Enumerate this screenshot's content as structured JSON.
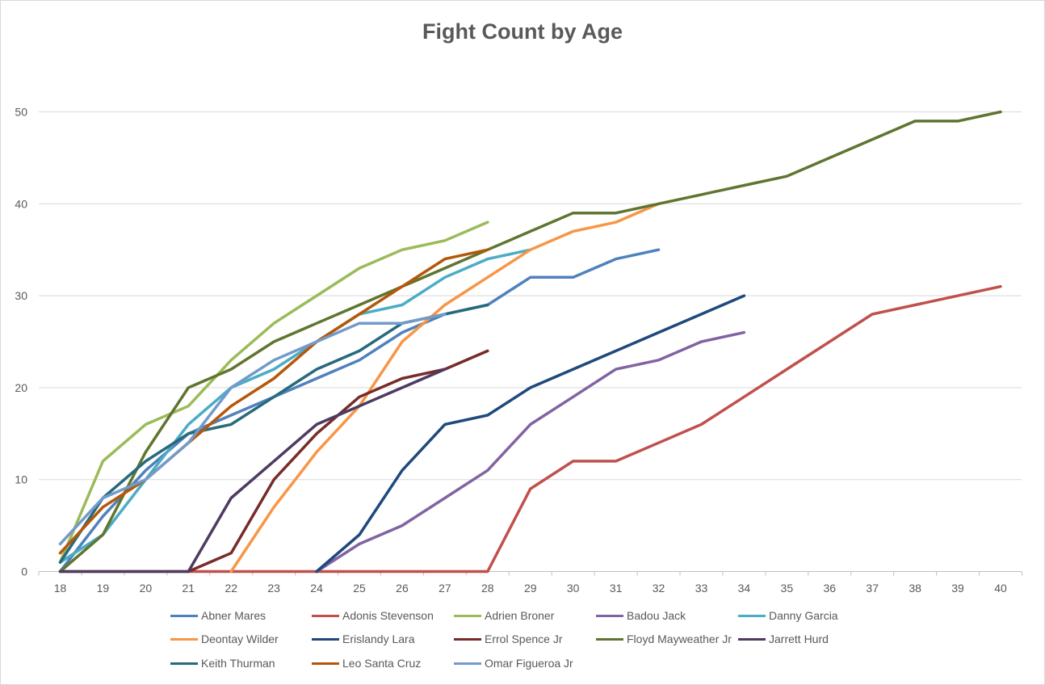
{
  "chart_data": {
    "type": "line",
    "title": "Fight Count by Age",
    "xlabel": "",
    "ylabel": "",
    "x": [
      18,
      19,
      20,
      21,
      22,
      23,
      24,
      25,
      26,
      27,
      28,
      29,
      30,
      31,
      32,
      33,
      34,
      35,
      36,
      37,
      38,
      39,
      40
    ],
    "y_ticks": [
      0,
      10,
      20,
      30,
      40,
      50
    ],
    "ylim": [
      0,
      55
    ],
    "grid": "horizontal",
    "legend_position": "bottom",
    "series": [
      {
        "name": "Abner Mares",
        "color": "#4f81bd",
        "values": [
          0,
          6,
          11,
          15,
          17,
          19,
          21,
          23,
          26,
          28,
          29,
          32,
          32,
          34,
          35,
          null,
          null,
          null,
          null,
          null,
          null,
          null,
          null
        ]
      },
      {
        "name": "Adonis Stevenson",
        "color": "#c0504d",
        "values": [
          0,
          0,
          0,
          0,
          0,
          0,
          0,
          0,
          0,
          0,
          0,
          9,
          12,
          12,
          14,
          16,
          19,
          22,
          25,
          28,
          29,
          30,
          31
        ]
      },
      {
        "name": "Adrien Broner",
        "color": "#9bbb59",
        "values": [
          1,
          12,
          16,
          18,
          23,
          27,
          30,
          33,
          35,
          36,
          38,
          null,
          null,
          null,
          null,
          null,
          null,
          null,
          null,
          null,
          null,
          null,
          null
        ]
      },
      {
        "name": "Badou Jack",
        "color": "#8064a2",
        "values": [
          null,
          null,
          null,
          null,
          null,
          null,
          0,
          3,
          5,
          8,
          11,
          16,
          19,
          22,
          23,
          25,
          26,
          null,
          null,
          null,
          null,
          null,
          null
        ]
      },
      {
        "name": "Danny Garcia",
        "color": "#4bacc6",
        "values": [
          1,
          4,
          10,
          16,
          20,
          22,
          25,
          28,
          29,
          32,
          34,
          35,
          null,
          null,
          null,
          null,
          null,
          null,
          null,
          null,
          null,
          null,
          null
        ]
      },
      {
        "name": "Deontay Wilder",
        "color": "#f79646",
        "values": [
          null,
          null,
          null,
          null,
          0,
          7,
          13,
          18,
          25,
          29,
          32,
          35,
          37,
          38,
          40,
          null,
          null,
          null,
          null,
          null,
          null,
          null,
          null
        ]
      },
      {
        "name": "Erislandy Lara",
        "color": "#1f497d",
        "values": [
          null,
          null,
          null,
          null,
          null,
          null,
          0,
          4,
          11,
          16,
          17,
          20,
          22,
          24,
          26,
          28,
          30,
          null,
          null,
          null,
          null,
          null,
          null
        ]
      },
      {
        "name": "Errol Spence Jr",
        "color": "#772c2a",
        "values": [
          null,
          null,
          null,
          0,
          2,
          10,
          15,
          19,
          21,
          22,
          24,
          null,
          null,
          null,
          null,
          null,
          null,
          null,
          null,
          null,
          null,
          null,
          null
        ]
      },
      {
        "name": "Floyd Mayweather Jr",
        "color": "#5f7530",
        "values": [
          0,
          4,
          13,
          20,
          22,
          25,
          27,
          29,
          31,
          33,
          35,
          37,
          39,
          39,
          40,
          41,
          42,
          43,
          45,
          47,
          49,
          49,
          50
        ]
      },
      {
        "name": "Jarrett Hurd",
        "color": "#4d3b62",
        "values": [
          0,
          0,
          0,
          0,
          8,
          12,
          16,
          18,
          20,
          22,
          null,
          null,
          null,
          null,
          null,
          null,
          null,
          null,
          null,
          null,
          null,
          null,
          null
        ]
      },
      {
        "name": "Keith Thurman",
        "color": "#276a7c",
        "values": [
          1,
          8,
          12,
          15,
          16,
          19,
          22,
          24,
          27,
          28,
          29,
          null,
          null,
          null,
          null,
          null,
          null,
          null,
          null,
          null,
          null,
          null,
          null
        ]
      },
      {
        "name": "Leo Santa Cruz",
        "color": "#b65708",
        "values": [
          2,
          7,
          10,
          14,
          18,
          21,
          25,
          28,
          31,
          34,
          35,
          null,
          null,
          null,
          null,
          null,
          null,
          null,
          null,
          null,
          null,
          null,
          null
        ]
      },
      {
        "name": "Omar Figueroa Jr",
        "color": "#729aca",
        "values": [
          3,
          8,
          10,
          14,
          20,
          23,
          25,
          27,
          27,
          28,
          null,
          null,
          null,
          null,
          null,
          null,
          null,
          null,
          null,
          null,
          null,
          null,
          null
        ]
      }
    ]
  }
}
